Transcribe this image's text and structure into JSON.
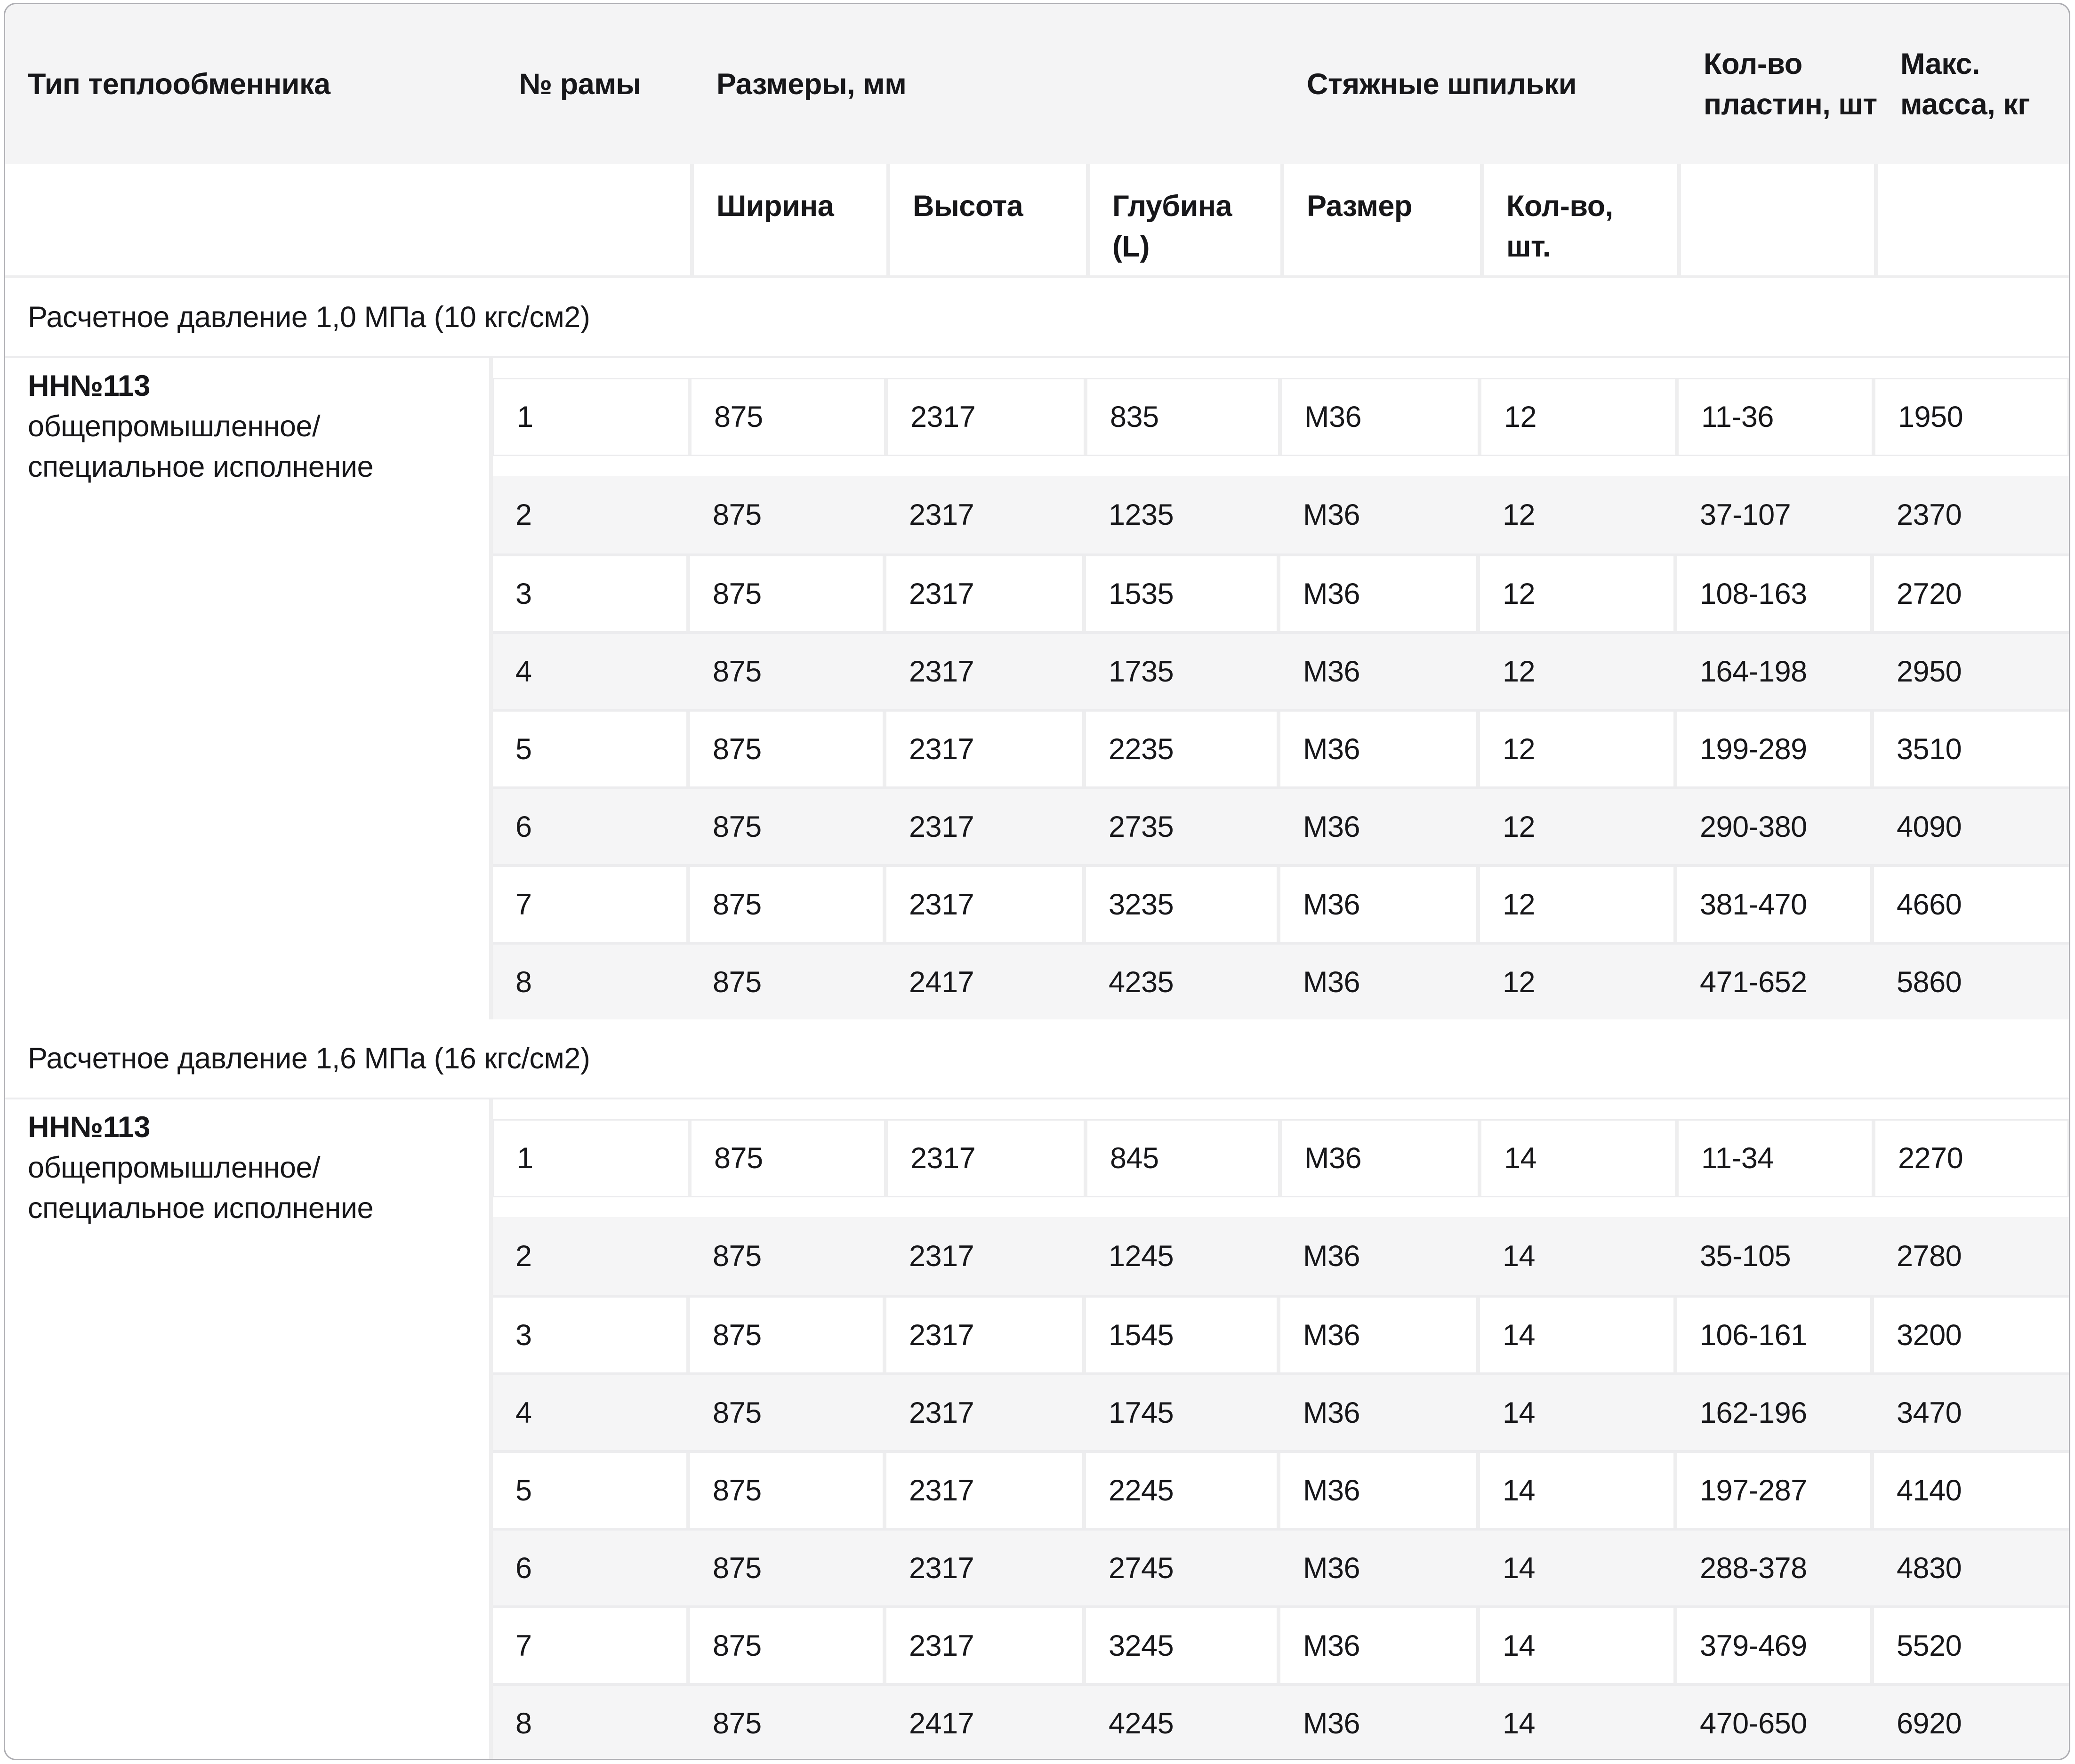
{
  "table": {
    "header_row1": [
      {
        "id": "type",
        "label": "Тип теплообменника"
      },
      {
        "id": "frame",
        "label": "№ рамы"
      },
      {
        "id": "dimensions",
        "label": "Размеры, мм"
      },
      {
        "id": "studs",
        "label": "Стяжные шпильки"
      },
      {
        "id": "plates",
        "label": "Кол-во пластин, шт"
      },
      {
        "id": "mass",
        "label": "Макс. масса, кг"
      }
    ],
    "header_row2": [
      "Ширина",
      "Высота",
      "Глубина (L)",
      "Размер",
      "Кол-во, шт."
    ],
    "sections": [
      {
        "title": "Расчетное давление 1,0 МПа (10 кгс/см2)",
        "type_name": "НН№113",
        "type_desc": [
          "общепромышленное/",
          "специальное исполнение"
        ],
        "rows": [
          [
            "1",
            "875",
            "2317",
            "835",
            "М36",
            "12",
            "11-36",
            "1950"
          ],
          [
            "2",
            "875",
            "2317",
            "1235",
            "М36",
            "12",
            "37-107",
            "2370"
          ],
          [
            "3",
            "875",
            "2317",
            "1535",
            "М36",
            "12",
            "108-163",
            "2720"
          ],
          [
            "4",
            "875",
            "2317",
            "1735",
            "М36",
            "12",
            "164-198",
            "2950"
          ],
          [
            "5",
            "875",
            "2317",
            "2235",
            "М36",
            "12",
            "199-289",
            "3510"
          ],
          [
            "6",
            "875",
            "2317",
            "2735",
            "М36",
            "12",
            "290-380",
            "4090"
          ],
          [
            "7",
            "875",
            "2317",
            "3235",
            "М36",
            "12",
            "381-470",
            "4660"
          ],
          [
            "8",
            "875",
            "2417",
            "4235",
            "М36",
            "12",
            "471-652",
            "5860"
          ]
        ]
      },
      {
        "title": "Расчетное давление 1,6 МПа (16 кгс/см2)",
        "type_name": "НН№113",
        "type_desc": [
          "общепромышленное/",
          "специальное исполнение"
        ],
        "rows": [
          [
            "1",
            "875",
            "2317",
            "845",
            "М36",
            "14",
            "11-34",
            "2270"
          ],
          [
            "2",
            "875",
            "2317",
            "1245",
            "М36",
            "14",
            "35-105",
            "2780"
          ],
          [
            "3",
            "875",
            "2317",
            "1545",
            "М36",
            "14",
            "106-161",
            "3200"
          ],
          [
            "4",
            "875",
            "2317",
            "1745",
            "М36",
            "14",
            "162-196",
            "3470"
          ],
          [
            "5",
            "875",
            "2317",
            "2245",
            "М36",
            "14",
            "197-287",
            "4140"
          ],
          [
            "6",
            "875",
            "2317",
            "2745",
            "М36",
            "14",
            "288-378",
            "4830"
          ],
          [
            "7",
            "875",
            "2317",
            "3245",
            "М36",
            "14",
            "379-469",
            "5520"
          ],
          [
            "8",
            "875",
            "2417",
            "4245",
            "М36",
            "14",
            "470-650",
            "6920"
          ]
        ]
      }
    ]
  },
  "colors": {
    "header_bg": "#f4f4f5",
    "row_alt_bg": "#f5f5f6",
    "divider": "#eeeeef",
    "card_border": "#adadb2",
    "cell_bg": "#ffffff",
    "text": "#17171a"
  }
}
